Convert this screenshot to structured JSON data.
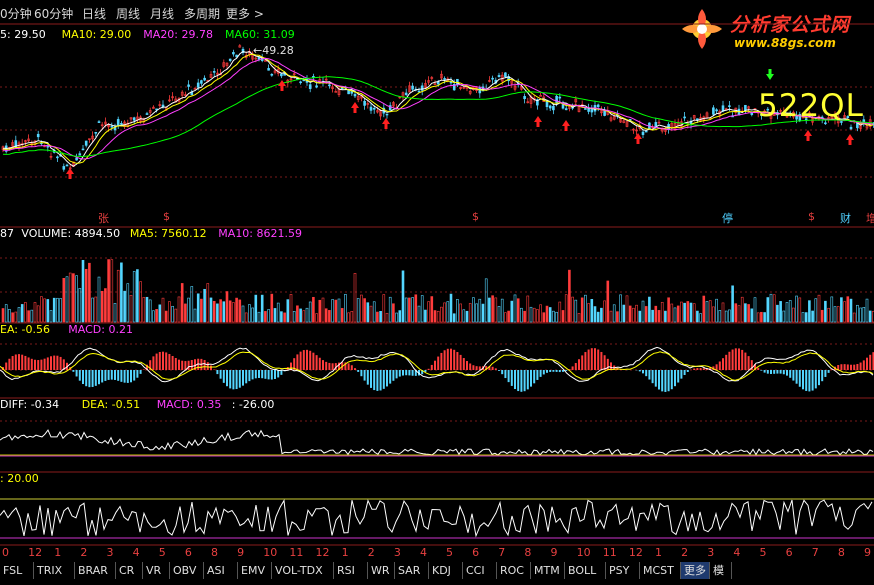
{
  "top_tabs": [
    {
      "label": "0分钟"
    },
    {
      "label": "60分钟"
    },
    {
      "label": "日线"
    },
    {
      "label": "周线"
    },
    {
      "label": "月线"
    },
    {
      "label": "多周期"
    },
    {
      "label": "更多 >"
    }
  ],
  "logo": {
    "title": "分析家公式网",
    "url_text": "www.88gs.com"
  },
  "watermark": "522QL",
  "main_panel": {
    "labels": [
      {
        "text": "5: 29.50",
        "color": "#ffffff"
      },
      {
        "text": "MA10: 29.00",
        "color": "#ffff00"
      },
      {
        "text": "MA20: 29.78",
        "color": "#ff40ff"
      },
      {
        "text": "MA60: 31.09",
        "color": "#00ff00"
      }
    ],
    "peak_label": "49.28",
    "date_marks": [
      "张",
      "$",
      "$",
      "停",
      "$",
      "财",
      "增"
    ]
  },
  "volume_panel": {
    "labels": [
      {
        "text": "87",
        "color": "#ffffff"
      },
      {
        "text": "VOLUME: 4894.50",
        "color": "#ffffff"
      },
      {
        "text": "MA5: 7560.12",
        "color": "#ffff00"
      },
      {
        "text": "MA10: 8621.59",
        "color": "#ff40ff"
      }
    ]
  },
  "macd_panel": {
    "labels": [
      {
        "text": "EA: -0.56",
        "color": "#ffff00"
      },
      {
        "text": "MACD: 0.21",
        "color": "#ff40ff"
      }
    ]
  },
  "macd2_panel": {
    "labels": [
      {
        "text": "DIFF: -0.34",
        "color": "#ffffff"
      },
      {
        "text": "DEA: -0.51",
        "color": "#ffff00"
      },
      {
        "text": "MACD: 0.35",
        "color": "#ff40ff"
      },
      {
        "text": ": -26.00",
        "color": "#ffffff"
      }
    ]
  },
  "osc_panel": {
    "labels": [
      {
        "text": ": 20.00",
        "color": "#ffff00"
      }
    ]
  },
  "x_axis_labels": [
    "0",
    "12",
    "1",
    "2",
    "3",
    "4",
    "5",
    "6",
    "8",
    "9",
    "10",
    "11",
    "12",
    "1",
    "2",
    "3",
    "4",
    "5",
    "6",
    "7",
    "8",
    "9",
    "10",
    "11",
    "12",
    "1",
    "2",
    "3",
    "4",
    "5",
    "6",
    "7",
    "8",
    "9"
  ],
  "bottom_tabs": [
    {
      "label": "FSL"
    },
    {
      "label": "TRIX"
    },
    {
      "label": "BRAR"
    },
    {
      "label": "CR"
    },
    {
      "label": "VR"
    },
    {
      "label": "OBV"
    },
    {
      "label": "ASI"
    },
    {
      "label": "EMV"
    },
    {
      "label": "VOL-TDX"
    },
    {
      "label": "RSI"
    },
    {
      "label": "WR"
    },
    {
      "label": "SAR"
    },
    {
      "label": "KDJ"
    },
    {
      "label": "CCI"
    },
    {
      "label": "ROC"
    },
    {
      "label": "MTM"
    },
    {
      "label": "BOLL"
    },
    {
      "label": "PSY"
    },
    {
      "label": "MCST"
    },
    {
      "label": "更多"
    },
    {
      "label": "模"
    }
  ],
  "colors": {
    "grid": "#7a1a1a",
    "up": "#ff3c3c",
    "down": "#54d6ff",
    "ma5": "#ffffff",
    "ma10": "#ffff00",
    "ma20": "#ff40ff",
    "ma60": "#00ff00",
    "bottom_active_tab": "#1f3a6e"
  }
}
